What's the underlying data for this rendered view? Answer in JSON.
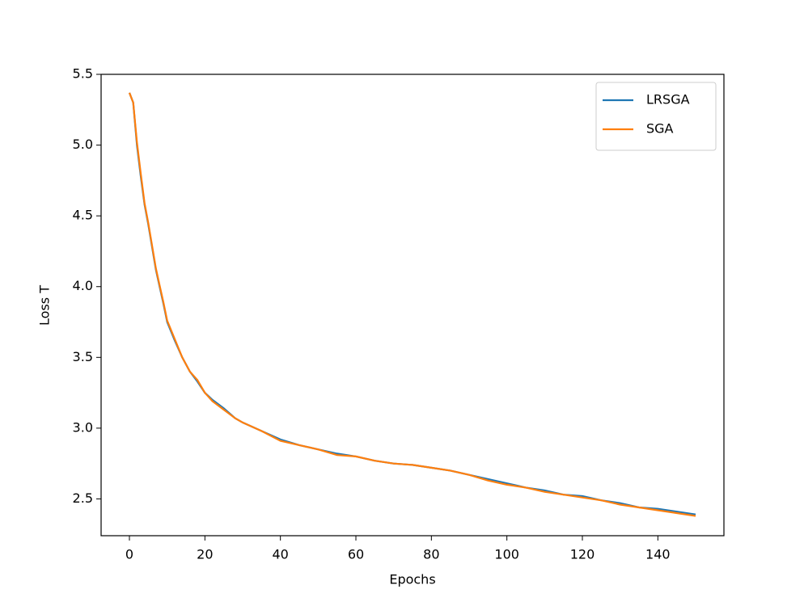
{
  "chart_data": {
    "type": "line",
    "xlabel": "Epochs",
    "ylabel": "Loss T",
    "x": [
      0,
      1,
      2,
      3,
      4,
      5,
      6,
      7,
      8,
      9,
      10,
      12,
      14,
      16,
      18,
      20,
      22,
      25,
      28,
      30,
      35,
      40,
      45,
      50,
      55,
      60,
      65,
      70,
      75,
      80,
      85,
      90,
      95,
      100,
      105,
      110,
      115,
      120,
      125,
      130,
      135,
      140,
      145,
      150
    ],
    "series": [
      {
        "name": "LRSGA",
        "color": "#1f77b4",
        "values": [
          5.37,
          5.3,
          5.0,
          4.78,
          4.58,
          4.44,
          4.28,
          4.12,
          4.0,
          3.88,
          3.75,
          3.62,
          3.5,
          3.4,
          3.33,
          3.25,
          3.2,
          3.14,
          3.07,
          3.04,
          2.98,
          2.92,
          2.88,
          2.85,
          2.82,
          2.8,
          2.77,
          2.75,
          2.74,
          2.72,
          2.7,
          2.67,
          2.64,
          2.61,
          2.58,
          2.56,
          2.53,
          2.52,
          2.49,
          2.47,
          2.44,
          2.43,
          2.41,
          2.39
        ]
      },
      {
        "name": "SGA",
        "color": "#ff7f0e",
        "values": [
          5.37,
          5.3,
          5.02,
          4.8,
          4.59,
          4.45,
          4.29,
          4.13,
          4.01,
          3.89,
          3.76,
          3.63,
          3.5,
          3.4,
          3.34,
          3.25,
          3.19,
          3.13,
          3.07,
          3.04,
          2.98,
          2.91,
          2.88,
          2.85,
          2.81,
          2.8,
          2.77,
          2.75,
          2.74,
          2.72,
          2.7,
          2.67,
          2.63,
          2.6,
          2.58,
          2.55,
          2.53,
          2.51,
          2.49,
          2.46,
          2.44,
          2.42,
          2.4,
          2.38
        ]
      }
    ],
    "xlim": [
      -7.5,
      157.5
    ],
    "ylim": [
      2.24,
      5.5
    ],
    "xticks": [
      0,
      20,
      40,
      60,
      80,
      100,
      120,
      140
    ],
    "yticks": [
      2.5,
      {
        "value": 3,
        "label": "3.0"
      },
      3.5,
      {
        "value": 4,
        "label": "4.0"
      },
      4.5,
      {
        "value": 5,
        "label": "5.0"
      },
      5.5
    ],
    "legend": "upper right"
  }
}
